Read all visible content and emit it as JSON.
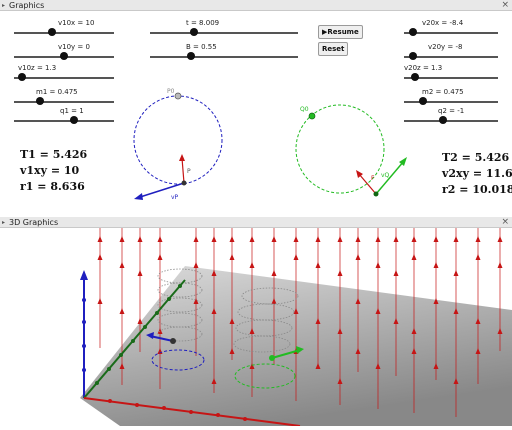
{
  "graphics_panel": {
    "title": "Graphics",
    "close": "×",
    "toggle": "▸"
  },
  "graphics3d_panel": {
    "title": "3D Graphics",
    "close": "×",
    "toggle": "▸"
  },
  "sliders": [
    {
      "id": "v10x",
      "label": "v10x = 10",
      "value": 10
    },
    {
      "id": "v10y",
      "label": "v10y = 0",
      "value": 0
    },
    {
      "id": "v10z",
      "label": "v10z = 1.3",
      "value": 1.3
    },
    {
      "id": "m1",
      "label": "m1 = 0.475",
      "value": 0.475
    },
    {
      "id": "q1",
      "label": "q1 = 1",
      "value": 1
    },
    {
      "id": "t",
      "label": "t = 8.009",
      "value": 8.009
    },
    {
      "id": "B",
      "label": "B = 0.55",
      "value": 0.55
    },
    {
      "id": "v20x",
      "label": "v20x = -8.4",
      "value": -8.4
    },
    {
      "id": "v20y",
      "label": "v20y = -8",
      "value": -8
    },
    {
      "id": "v20z",
      "label": "v20z = 1.3",
      "value": 1.3
    },
    {
      "id": "m2",
      "label": "m2 = 0.475",
      "value": 0.475
    },
    {
      "id": "q2",
      "label": "q2 = -1",
      "value": -1
    }
  ],
  "buttons": {
    "resume": "▶Resume",
    "reset": "Reset"
  },
  "particle1": {
    "T": "T1 = 5.426",
    "v": "v1xy = 10",
    "r": "r1 = 8.636",
    "start_label": "P0",
    "point_label": "P",
    "velocity_label": "vP",
    "color": "#1f1fbf"
  },
  "particle2": {
    "T": "T2 = 5.426",
    "v": "v2xy = 11.6",
    "r": "r2 = 10.018",
    "start_label": "Q0",
    "point_label": "F",
    "velocity_label": "vQ",
    "color": "#22bb22"
  },
  "colors": {
    "field": "#c61515",
    "panel_bar": "#e8e8e8"
  }
}
